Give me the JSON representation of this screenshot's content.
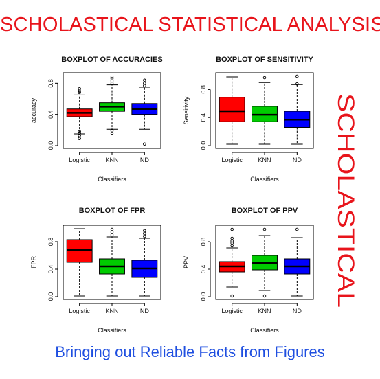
{
  "banner": {
    "title": "SCHOLASTICAL STATISTICAL ANALYSIS",
    "side_text": "SCHOLASTICAL",
    "tagline": "Bringing out Reliable Facts from Figures",
    "title_color": "#e8141b",
    "tagline_color": "#1f4fe0"
  },
  "chart_data": [
    {
      "type": "boxplot",
      "title": "BOXPLOT OF ACCURACIES",
      "xlabel": "Classifiers",
      "ylabel": "accuracy",
      "ylim": [
        0,
        0.9
      ],
      "yticks": [
        0.0,
        0.4,
        0.8
      ],
      "ytick_labels": [
        "0.0",
        "0.4",
        "0.8"
      ],
      "categories": [
        "Logistic",
        "KNN",
        "ND"
      ],
      "colors": [
        "#ff0000",
        "#00cc00",
        "#0000ff"
      ],
      "boxes": [
        {
          "whisker_low": 0.15,
          "q1": 0.37,
          "median": 0.42,
          "q3": 0.47,
          "whisker_high": 0.65,
          "outliers": [
            0.09,
            0.13,
            0.16,
            0.18,
            0.68,
            0.7,
            0.73
          ]
        },
        {
          "whisker_low": 0.21,
          "q1": 0.44,
          "median": 0.5,
          "q3": 0.55,
          "whisker_high": 0.78,
          "outliers": [
            0.16,
            0.19,
            0.8,
            0.83,
            0.86,
            0.88
          ]
        },
        {
          "whisker_low": 0.21,
          "q1": 0.4,
          "median": 0.47,
          "q3": 0.54,
          "whisker_high": 0.75,
          "outliers": [
            0.02,
            0.77,
            0.8,
            0.84
          ]
        }
      ]
    },
    {
      "type": "boxplot",
      "title": "BOXPLOT OF SENSITIVITY",
      "xlabel": "Classifiers",
      "ylabel": "Sensitivity",
      "ylim": [
        0,
        1.0
      ],
      "yticks": [
        0.0,
        0.4,
        0.8
      ],
      "ytick_labels": [
        "0.0",
        "0.4",
        "0.8"
      ],
      "categories": [
        "Logistic",
        "KNN",
        "ND"
      ],
      "colors": [
        "#ff0000",
        "#00cc00",
        "#0000ff"
      ],
      "boxes": [
        {
          "whisker_low": 0.02,
          "q1": 0.34,
          "median": 0.49,
          "q3": 0.69,
          "whisker_high": 0.98,
          "outliers": []
        },
        {
          "whisker_low": 0.02,
          "q1": 0.34,
          "median": 0.44,
          "q3": 0.56,
          "whisker_high": 0.9,
          "outliers": [
            0.97
          ]
        },
        {
          "whisker_low": 0.02,
          "q1": 0.26,
          "median": 0.37,
          "q3": 0.49,
          "whisker_high": 0.87,
          "outliers": [
            0.88,
            0.99
          ]
        }
      ]
    },
    {
      "type": "boxplot",
      "title": "BOXPLOT OF FPR",
      "xlabel": "Classifiers",
      "ylabel": "FPR",
      "ylim": [
        0,
        1.0
      ],
      "yticks": [
        0.0,
        0.4,
        0.8
      ],
      "ytick_labels": [
        "0.0",
        "0.4",
        "0.8"
      ],
      "categories": [
        "Logistic",
        "KNN",
        "ND"
      ],
      "colors": [
        "#ff0000",
        "#00cc00",
        "#0000ff"
      ],
      "boxes": [
        {
          "whisker_low": 0.01,
          "q1": 0.5,
          "median": 0.68,
          "q3": 0.83,
          "whisker_high": 0.99,
          "outliers": []
        },
        {
          "whisker_low": 0.01,
          "q1": 0.33,
          "median": 0.44,
          "q3": 0.55,
          "whisker_high": 0.87,
          "outliers": [
            0.9,
            0.94,
            0.98
          ]
        },
        {
          "whisker_low": 0.01,
          "q1": 0.28,
          "median": 0.41,
          "q3": 0.53,
          "whisker_high": 0.85,
          "outliers": [
            0.88,
            0.92,
            0.96
          ]
        }
      ]
    },
    {
      "type": "boxplot",
      "title": "BOXPLOT OF PPV",
      "xlabel": "Classifiers",
      "ylabel": "PPV",
      "ylim": [
        0,
        1.0
      ],
      "yticks": [
        0.0,
        0.4,
        0.8
      ],
      "ytick_labels": [
        "0.0",
        "0.4",
        "0.8"
      ],
      "categories": [
        "Logistic",
        "KNN",
        "ND"
      ],
      "colors": [
        "#ff0000",
        "#00cc00",
        "#0000ff"
      ],
      "boxes": [
        {
          "whisker_low": 0.14,
          "q1": 0.36,
          "median": 0.44,
          "q3": 0.51,
          "whisker_high": 0.71,
          "outliers": [
            0.01,
            0.74,
            0.78,
            0.81,
            0.85,
            0.98
          ]
        },
        {
          "whisker_low": 0.09,
          "q1": 0.39,
          "median": 0.49,
          "q3": 0.6,
          "whisker_high": 0.89,
          "outliers": [
            0.01,
            0.98
          ]
        },
        {
          "whisker_low": 0.01,
          "q1": 0.33,
          "median": 0.44,
          "q3": 0.55,
          "whisker_high": 0.86,
          "outliers": [
            0.98
          ]
        }
      ]
    }
  ]
}
